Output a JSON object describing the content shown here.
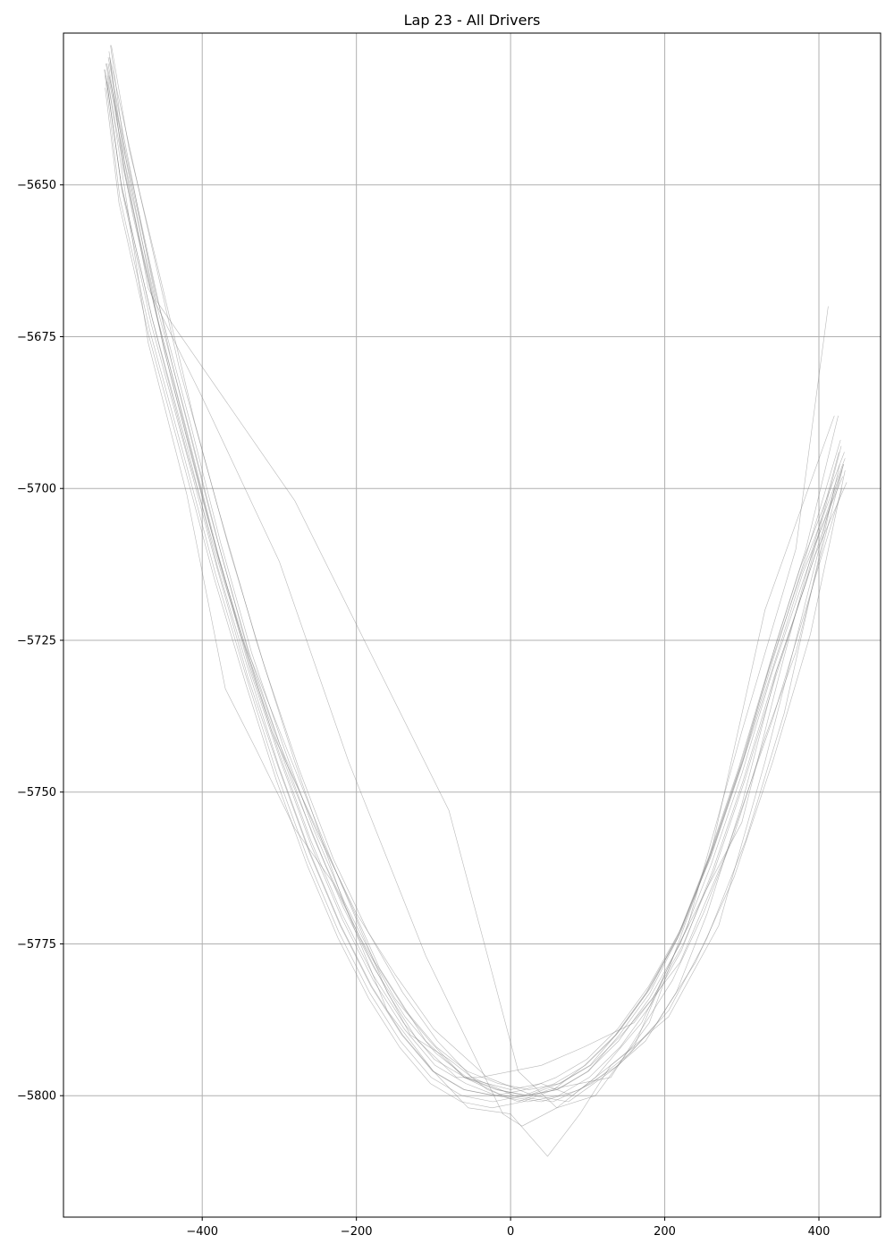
{
  "chart_data": {
    "type": "line",
    "title": "Lap 23 - All Drivers",
    "xlabel": "",
    "ylabel": "",
    "xlim": [
      -580,
      480
    ],
    "ylim": [
      -5820,
      -5625
    ],
    "xticks": [
      -400,
      -200,
      0,
      200,
      400
    ],
    "xtick_labels": [
      "−400",
      "−200",
      "0",
      "200",
      "400"
    ],
    "yticks": [
      -5650,
      -5675,
      -5700,
      -5725,
      -5750,
      -5775,
      -5800
    ],
    "ytick_labels": [
      "−5650",
      "−5675",
      "−5700",
      "−5725",
      "−5750",
      "−5775",
      "−5800"
    ],
    "grid": true,
    "line_color": "#808080",
    "grid_color": "#b0b0b0",
    "series": [
      {
        "x": [
          -525,
          -505,
          -465,
          -420,
          -380,
          -340,
          -300,
          -260,
          -220,
          -180,
          -140,
          -100,
          -60,
          -20,
          20,
          60,
          100,
          140,
          180,
          220,
          260,
          300,
          340,
          380,
          432
        ],
        "y": [
          -5632,
          -5650,
          -5672,
          -5693,
          -5713,
          -5730,
          -5746,
          -5760,
          -5772,
          -5782,
          -5790,
          -5796,
          -5799,
          -5800,
          -5800,
          -5799,
          -5796,
          -5791,
          -5784,
          -5775,
          -5762,
          -5747,
          -5730,
          -5715,
          -5696
        ]
      },
      {
        "x": [
          -522,
          -500,
          -460,
          -418,
          -378,
          -338,
          -298,
          -258,
          -218,
          -178,
          -138,
          -98,
          -58,
          -18,
          22,
          62,
          102,
          142,
          182,
          222,
          262,
          302,
          342,
          382,
          430
        ],
        "y": [
          -5630,
          -5648,
          -5671,
          -5692,
          -5712,
          -5730,
          -5745,
          -5759,
          -5771,
          -5781,
          -5789,
          -5795,
          -5798,
          -5800,
          -5801,
          -5800,
          -5797,
          -5792,
          -5785,
          -5776,
          -5763,
          -5748,
          -5731,
          -5716,
          -5697
        ]
      },
      {
        "x": [
          -527,
          -507,
          -468,
          -423,
          -383,
          -343,
          -303,
          -263,
          -223,
          -183,
          -143,
          -103,
          -63,
          -23,
          17,
          57,
          97,
          137,
          177,
          217,
          257,
          297,
          337,
          377,
          434
        ],
        "y": [
          -5631,
          -5652,
          -5674,
          -5695,
          -5714,
          -5731,
          -5747,
          -5761,
          -5773,
          -5783,
          -5791,
          -5797,
          -5800,
          -5801,
          -5800,
          -5798,
          -5795,
          -5790,
          -5783,
          -5774,
          -5761,
          -5746,
          -5729,
          -5714,
          -5695
        ]
      },
      {
        "x": [
          -520,
          -503,
          -462,
          -419,
          -379,
          -339,
          -299,
          -259,
          -219,
          -179,
          -139,
          -99,
          -59,
          -19,
          21,
          61,
          101,
          141,
          181,
          221,
          261,
          301,
          341,
          381,
          428
        ],
        "y": [
          -5629,
          -5647,
          -5670,
          -5691,
          -5711,
          -5729,
          -5744,
          -5758,
          -5770,
          -5780,
          -5788,
          -5794,
          -5797,
          -5799,
          -5800,
          -5799,
          -5796,
          -5790,
          -5783,
          -5773,
          -5760,
          -5745,
          -5728,
          -5712,
          -5692
        ]
      },
      {
        "x": [
          -524,
          -504,
          -466,
          -421,
          -381,
          -341,
          -301,
          -261,
          -221,
          -181,
          -141,
          -101,
          -61,
          -21,
          19,
          59,
          99,
          139,
          179,
          219,
          259,
          299,
          339,
          379,
          431
        ],
        "y": [
          -5633,
          -5651,
          -5673,
          -5694,
          -5713,
          -5731,
          -5746,
          -5760,
          -5772,
          -5782,
          -5790,
          -5796,
          -5799,
          -5800,
          -5799,
          -5797,
          -5794,
          -5789,
          -5782,
          -5773,
          -5761,
          -5746,
          -5730,
          -5714,
          -5698
        ]
      },
      {
        "x": [
          -521,
          -501,
          -461,
          -417,
          -377,
          -337,
          -297,
          -257,
          -217,
          -177,
          -137,
          -97,
          -57,
          -17,
          23,
          63,
          103,
          143,
          183,
          223,
          263,
          303,
          343,
          383,
          425
        ],
        "y": [
          -5628,
          -5646,
          -5669,
          -5690,
          -5710,
          -5728,
          -5743,
          -5757,
          -5769,
          -5779,
          -5787,
          -5793,
          -5797,
          -5799,
          -5800,
          -5798,
          -5795,
          -5789,
          -5782,
          -5772,
          -5759,
          -5744,
          -5726,
          -5710,
          -5688
        ]
      },
      {
        "x": [
          -526,
          -508,
          -469,
          -424,
          -384,
          -344,
          -304,
          -264,
          -224,
          -184,
          -144,
          -104,
          -64,
          -24,
          16,
          56,
          96,
          136,
          176,
          216,
          256,
          296,
          336,
          376,
          433
        ],
        "y": [
          -5634,
          -5653,
          -5675,
          -5696,
          -5715,
          -5732,
          -5748,
          -5762,
          -5774,
          -5784,
          -5792,
          -5798,
          -5801,
          -5802,
          -5801,
          -5799,
          -5795,
          -5790,
          -5783,
          -5774,
          -5761,
          -5746,
          -5729,
          -5713,
          -5694
        ]
      },
      {
        "x": [
          -519,
          -500,
          -460,
          -416,
          -376,
          -336,
          -296,
          -256,
          -216,
          -176,
          -136,
          -96,
          -56,
          -16,
          24,
          64,
          104,
          144,
          184,
          224,
          264,
          304,
          344,
          384,
          429
        ],
        "y": [
          -5627,
          -5645,
          -5668,
          -5689,
          -5709,
          -5727,
          -5742,
          -5756,
          -5768,
          -5778,
          -5786,
          -5792,
          -5796,
          -5798,
          -5799,
          -5798,
          -5795,
          -5790,
          -5784,
          -5775,
          -5763,
          -5748,
          -5731,
          -5715,
          -5693
        ]
      },
      {
        "x": [
          -523,
          -470,
          -420,
          -370,
          -330,
          -280,
          -230,
          -180,
          -130,
          -80,
          -30,
          10,
          50,
          90,
          130,
          170,
          210,
          250,
          290,
          330,
          370,
          432
        ],
        "y": [
          -5632,
          -5676,
          -5701,
          -5733,
          -5743,
          -5756,
          -5765,
          -5778,
          -5790,
          -5794,
          -5799,
          -5801,
          -5799,
          -5798,
          -5797,
          -5789,
          -5781,
          -5770,
          -5757,
          -5741,
          -5727,
          -5696
        ]
      },
      {
        "x": [
          -522,
          -460,
          -280,
          -80,
          10,
          60,
          110,
          180,
          260,
          330,
          420
        ],
        "y": [
          -5629,
          -5669,
          -5702,
          -5753,
          -5796,
          -5802,
          -5800,
          -5788,
          -5760,
          -5720,
          -5688
        ]
      },
      {
        "x": [
          -525,
          -470,
          -400,
          -300,
          -210,
          -110,
          -10,
          15,
          60,
          110,
          170,
          230,
          300,
          370,
          412
        ],
        "y": [
          -5630,
          -5667,
          -5685,
          -5712,
          -5745,
          -5777,
          -5803,
          -5805,
          -5802,
          -5797,
          -5788,
          -5772,
          -5740,
          -5710,
          -5670
        ]
      },
      {
        "x": [
          -524,
          -450,
          -380,
          -310,
          -230,
          -160,
          -120,
          -70,
          -40,
          40,
          95,
          160,
          220,
          280,
          340,
          430
        ],
        "y": [
          -5630,
          -5677,
          -5711,
          -5740,
          -5762,
          -5783,
          -5791,
          -5797,
          -5797,
          -5795,
          -5792,
          -5788,
          -5778,
          -5760,
          -5738,
          -5700
        ]
      },
      {
        "x": [
          -520,
          -480,
          -430,
          -380,
          -330,
          -280,
          -220,
          -160,
          -100,
          -55,
          0,
          48,
          90,
          130,
          205,
          270,
          330,
          420
        ],
        "y": [
          -5629,
          -5652,
          -5680,
          -5703,
          -5725,
          -5745,
          -5767,
          -5786,
          -5796,
          -5802,
          -5803,
          -5810,
          -5803,
          -5795,
          -5787,
          -5772,
          -5745,
          -5700
        ]
      },
      {
        "x": [
          -521,
          -490,
          -440,
          -390,
          -340,
          -290,
          -230,
          -170,
          -110,
          -60,
          0,
          40,
          80,
          120,
          160,
          200,
          250,
          300,
          350,
          426
        ],
        "y": [
          -5632,
          -5650,
          -5679,
          -5704,
          -5727,
          -5743,
          -5762,
          -5779,
          -5791,
          -5797,
          -5799,
          -5798,
          -5800,
          -5796,
          -5792,
          -5780,
          -5767,
          -5755,
          -5730,
          -5694
        ]
      },
      {
        "x": [
          -523,
          -490,
          -440,
          -395,
          -350,
          -300,
          -250,
          -200,
          -150,
          -100,
          -30,
          30,
          75,
          130,
          175,
          215,
          255,
          300,
          345,
          395,
          436
        ],
        "y": [
          -5633,
          -5655,
          -5682,
          -5704,
          -5724,
          -5742,
          -5757,
          -5770,
          -5780,
          -5789,
          -5797,
          -5800,
          -5801,
          -5796,
          -5791,
          -5783,
          -5770,
          -5752,
          -5730,
          -5711,
          -5699
        ]
      },
      {
        "x": [
          -518,
          -495,
          -455,
          -410,
          -365,
          -320,
          -275,
          -230,
          -185,
          -140,
          -95,
          -50,
          5,
          55,
          105,
          155,
          205,
          255,
          305,
          355,
          427
        ],
        "y": [
          -5627,
          -5644,
          -5665,
          -5689,
          -5710,
          -5729,
          -5746,
          -5761,
          -5773,
          -5783,
          -5791,
          -5797,
          -5800,
          -5801,
          -5798,
          -5793,
          -5786,
          -5774,
          -5758,
          -5737,
          -5696
        ]
      },
      {
        "x": [
          -526,
          -505,
          -465,
          -420,
          -375,
          -330,
          -285,
          -240,
          -195,
          -150,
          -105,
          -60,
          -10,
          40,
          90,
          140,
          190,
          240,
          290,
          340,
          389,
          434
        ],
        "y": [
          -5631,
          -5650,
          -5672,
          -5694,
          -5714,
          -5732,
          -5748,
          -5762,
          -5774,
          -5784,
          -5791,
          -5797,
          -5800,
          -5801,
          -5799,
          -5795,
          -5788,
          -5778,
          -5764,
          -5745,
          -5724,
          -5697
        ]
      }
    ]
  }
}
